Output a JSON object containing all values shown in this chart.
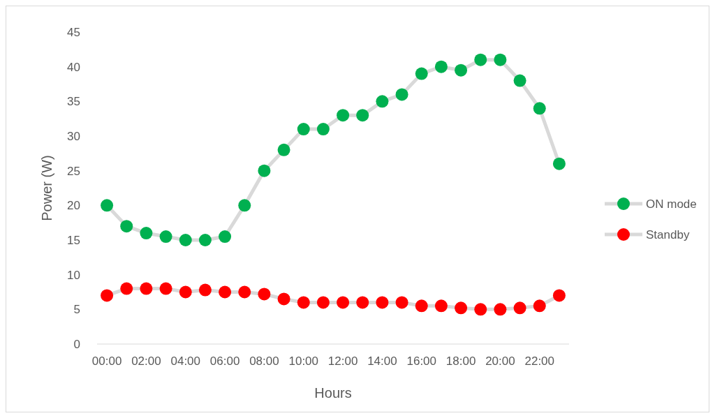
{
  "chart_data": {
    "type": "line",
    "xlabel": "Hours",
    "ylabel": "Power (W)",
    "categories": [
      "00:00",
      null,
      "02:00",
      null,
      "04:00",
      null,
      "06:00",
      null,
      "08:00",
      null,
      "10:00",
      null,
      "12:00",
      null,
      "14:00",
      null,
      "16:00",
      null,
      "18:00",
      null,
      "20:00",
      null,
      "22:00",
      null
    ],
    "series": [
      {
        "name": "ON mode",
        "color": "#00b050",
        "values": [
          20,
          17,
          16,
          15.5,
          15,
          15,
          15.5,
          20,
          25,
          28,
          31,
          31,
          33,
          33,
          35,
          36,
          39,
          40,
          39.5,
          41,
          41,
          38,
          34,
          26
        ]
      },
      {
        "name": "Standby",
        "color": "#ff0000",
        "values": [
          7,
          8,
          8,
          8,
          7.5,
          7.8,
          7.5,
          7.5,
          7.2,
          6.5,
          6,
          6,
          6,
          6,
          6,
          6,
          5.5,
          5.5,
          5.2,
          5,
          5,
          5.2,
          5.5,
          7
        ]
      }
    ],
    "ylim": [
      0,
      45
    ],
    "yticks": [
      0,
      5,
      10,
      15,
      20,
      25,
      30,
      35,
      40,
      45
    ],
    "legend": "right",
    "marker": "circle",
    "line_style": "solid",
    "grid": false
  }
}
